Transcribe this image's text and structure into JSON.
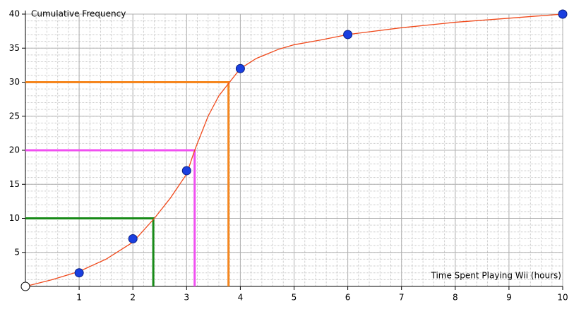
{
  "chart_data": {
    "type": "scatter",
    "y_label": "Cumulative Frequency",
    "x_label": "Time Spent Playing Wii (hours)",
    "x": [
      1,
      2,
      3,
      4,
      6,
      10
    ],
    "values": [
      2,
      7,
      17,
      32,
      37,
      40
    ],
    "color": "#1a3fe0",
    "curve": {
      "color": "#f04a1c",
      "x": [
        0,
        0.5,
        1,
        1.5,
        2,
        2.4,
        2.7,
        3,
        3.15,
        3.4,
        3.6,
        3.8,
        4,
        4.3,
        4.7,
        5,
        5.5,
        6,
        7,
        8,
        9,
        10
      ],
      "values": [
        0,
        1,
        2.2,
        4,
        6.5,
        10,
        13,
        16.5,
        20,
        25,
        28,
        30,
        32,
        33.5,
        34.8,
        35.5,
        36.2,
        37,
        38,
        38.8,
        39.4,
        40
      ]
    },
    "reference_lines": [
      {
        "y": 10,
        "x": 2.38,
        "color": "#178a17"
      },
      {
        "y": 20,
        "x": 3.15,
        "color": "#f050f0"
      },
      {
        "y": 30,
        "x": 3.78,
        "color": "#f5861e"
      }
    ],
    "xlim": [
      0,
      10
    ],
    "ylim": [
      0,
      40
    ],
    "xticks": [
      1,
      2,
      3,
      4,
      5,
      6,
      7,
      8,
      9,
      10
    ],
    "yticks": [
      5,
      10,
      15,
      20,
      25,
      30,
      35,
      40
    ],
    "grid": {
      "x_minor": 0.2,
      "y_minor": 1
    }
  }
}
